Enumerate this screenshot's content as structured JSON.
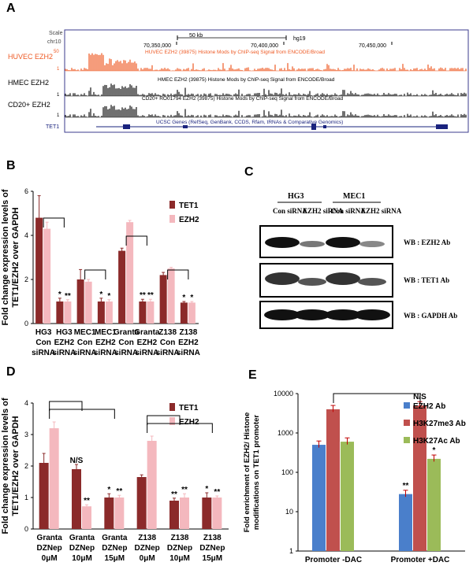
{
  "panels": {
    "a": "A",
    "b": "B",
    "c": "C",
    "d": "D",
    "e": "E"
  },
  "browser": {
    "scale_label": "Scale",
    "chr_label": "chr10",
    "scale_bar_text": "50 kb",
    "genome": "hg19",
    "positions": [
      "70,350,000",
      "70,400,000",
      "70,450,000"
    ],
    "tracks": [
      {
        "name": "HUVEC EZH2",
        "max": "50",
        "min": "1",
        "desc": "HUVEC EZH2 (39875) Histone Mods by ChIP-seq Signal from ENCODE/Broad",
        "color": "#ee5a24"
      },
      {
        "name": "HMEC EZH2",
        "max": "",
        "min": "1",
        "desc": "HMEC EZH2 (39875) Histone Mods by ChIP-seq Signal from ENCODE/Broad",
        "color": "#111111"
      },
      {
        "name": "CD20+ EZH2",
        "max": "",
        "min": "1",
        "desc": "CD20+ RO01794 EZH2 (39875) Histone Mods by ChIP-seq Signal from ENCODE/Broad",
        "color": "#111111"
      }
    ],
    "gene_label": "TET1",
    "gene_desc": "UCSC Genes (RefSeq, GenBank, CCDS, Rfam, tRNAs & Comparative Genomics)"
  },
  "chart_data": [
    {
      "id": "B",
      "type": "bar",
      "ylabel": "Fold change expression levels of TET1/EZH2 over GAPDH",
      "ylim": [
        0,
        6
      ],
      "yticks": [
        0,
        2,
        4,
        6
      ],
      "categories": [
        "HG3 Con siRNA",
        "HG3 EZH2 siRNA",
        "MEC1 Con siRNA",
        "MEC1 EZH2 siRNA",
        "Granta Con siRNA",
        "Granta EZH2 siRNA",
        "Z138 Con siRNA",
        "Z138 EZH2 siRNA"
      ],
      "series": [
        {
          "name": "TET1",
          "color": "#8b2a2a",
          "values": [
            4.8,
            1.0,
            2.0,
            1.0,
            3.3,
            1.0,
            2.2,
            0.95
          ],
          "errors": [
            1.0,
            0.15,
            0.45,
            0.15,
            0.12,
            0.1,
            0.12,
            0.05
          ]
        },
        {
          "name": "EZH2",
          "color": "#f4b8be",
          "values": [
            4.3,
            1.0,
            1.9,
            1.0,
            4.6,
            1.0,
            2.5,
            0.95
          ],
          "errors": [
            0.3,
            0.08,
            0.1,
            0.08,
            0.08,
            0.1,
            0.05,
            0.05
          ]
        }
      ],
      "annotations": [
        "*",
        "**",
        "*",
        "*",
        "**",
        "**",
        "*",
        "*"
      ],
      "brackets": [
        [
          0,
          1
        ],
        [
          2,
          3
        ],
        [
          4,
          5
        ],
        [
          6,
          7
        ]
      ]
    },
    {
      "id": "D",
      "type": "bar",
      "ylabel": "Fold change expression levels of TET1/EZH2 over GAPDH",
      "ylim": [
        0,
        4
      ],
      "yticks": [
        0,
        1,
        2,
        3,
        4
      ],
      "categories": [
        "Granta DZNep 0μM",
        "Granta DZNep 10μM",
        "Granta DZNep 15μM",
        "Z138 DZNep 0μM",
        "Z138 DZNep 10μM",
        "Z138 DZNep 15μM"
      ],
      "series": [
        {
          "name": "TET1",
          "color": "#8b2a2a",
          "values": [
            2.1,
            1.9,
            1.0,
            1.65,
            0.9,
            1.0
          ],
          "errors": [
            0.3,
            0.15,
            0.12,
            0.07,
            0.08,
            0.15
          ]
        },
        {
          "name": "EZH2",
          "color": "#f4b8be",
          "values": [
            3.2,
            0.72,
            1.0,
            2.8,
            1.0,
            1.0
          ],
          "errors": [
            0.2,
            0.05,
            0.07,
            0.15,
            0.12,
            0.05
          ]
        }
      ],
      "annotations": [
        "N/S",
        "**",
        "*",
        "**",
        "**",
        "**",
        "*",
        "**"
      ],
      "brackets": [
        [
          0,
          1
        ],
        [
          0,
          2
        ],
        [
          3,
          4
        ],
        [
          3,
          5
        ]
      ]
    },
    {
      "id": "E",
      "type": "bar",
      "yscale": "log",
      "ylabel": "Fold enrichment of EZH2/ Histone modifications on TET1 promoter",
      "ylim": [
        1,
        10000
      ],
      "yticks": [
        "1",
        "10",
        "100",
        "1000",
        "10000"
      ],
      "categories": [
        "Promoter -DAC",
        "Promoter +DAC"
      ],
      "series": [
        {
          "name": "EZH2 Ab",
          "color": "#4a7fcb",
          "values": [
            500,
            28
          ]
        },
        {
          "name": "H3K27me3 Ab",
          "color": "#c0504d",
          "values": [
            4000,
            5000
          ]
        },
        {
          "name": "H3K27Ac Ab",
          "color": "#9bbb59",
          "values": [
            600,
            220
          ]
        }
      ],
      "annotations": [
        "**",
        "N/S",
        "*"
      ]
    }
  ],
  "blot": {
    "cell_lines": [
      "HG3",
      "MEC1"
    ],
    "lanes": [
      "Con siRNA",
      "EZH2 siRNA",
      "Con siRNA",
      "EZH2 siRNA"
    ],
    "rows": [
      "WB : EZH2 Ab",
      "WB : TET1 Ab",
      "WB : GAPDH Ab"
    ]
  }
}
